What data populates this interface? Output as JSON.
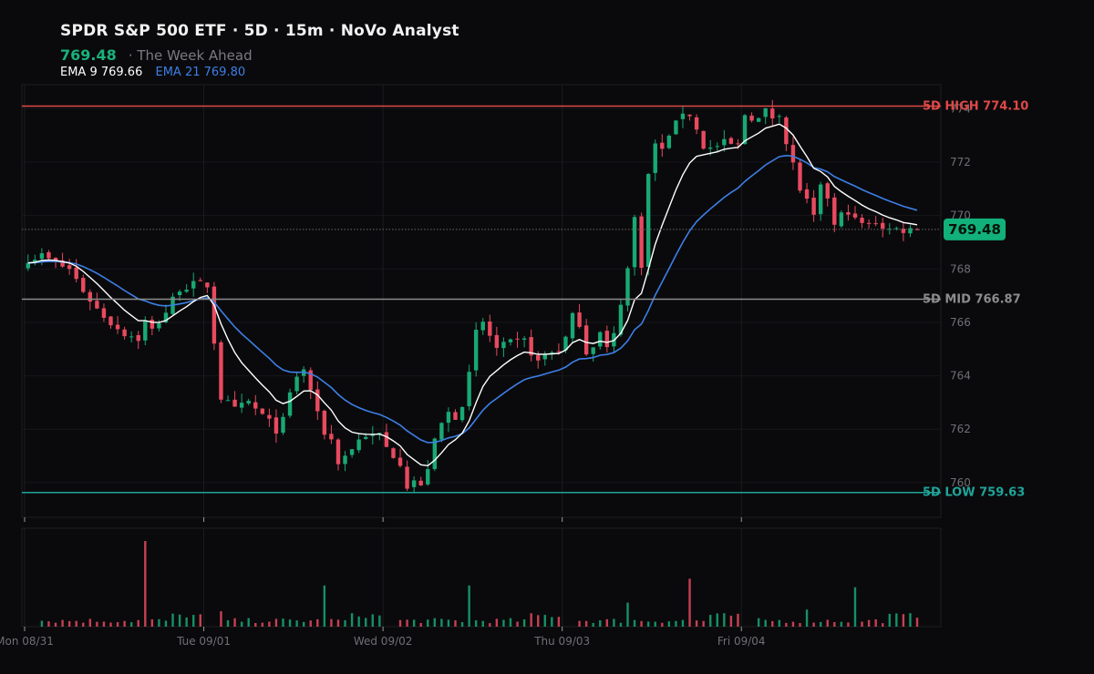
{
  "header": {
    "title": "SPDR S&P 500 ETF · 5D · 15m · NoVo Analyst",
    "last_price": "769.48",
    "subtitle": "· The Week Ahead",
    "ema9_label": "EMA 9 769.66",
    "ema21_label": "EMA 21 769.80"
  },
  "colors": {
    "background": "#0a0a0c",
    "up": "#19a874",
    "down": "#e84a5f",
    "ema9": "#ffffff",
    "ema21": "#3d7fe6",
    "high_line": "#e04848",
    "mid_line": "#8c8c8c",
    "low_line": "#1fa59a",
    "last_tag": "#12b07a"
  },
  "chart_data": {
    "type": "candlestick",
    "interval": "15m",
    "y_ticks": [
      "760",
      "762",
      "764",
      "766",
      "768",
      "770",
      "772",
      "774"
    ],
    "ylim": [
      758.7,
      774.9
    ],
    "x_ticks": [
      {
        "label": "Mon 08/31",
        "index": 0
      },
      {
        "label": "Tue 09/01",
        "index": 26
      },
      {
        "label": "Wed 09/02",
        "index": 52
      },
      {
        "label": "Thu 09/03",
        "index": 78
      },
      {
        "label": "Fri 09/04",
        "index": 104
      }
    ],
    "sessions": 5,
    "bars_per_session": 26,
    "levels": [
      {
        "id": "high",
        "label": "5D HIGH 774.10",
        "value": 774.1
      },
      {
        "id": "mid",
        "label": "5D MID 766.87",
        "value": 766.87
      },
      {
        "id": "low",
        "label": "5D LOW 759.63",
        "value": 759.63
      }
    ],
    "last_price": 769.48,
    "last_price_label": "769.48",
    "close_anchors": [
      [
        0,
        768.4
      ],
      [
        2,
        768.5
      ],
      [
        4,
        768.2
      ],
      [
        6,
        768.0
      ],
      [
        8,
        767.2
      ],
      [
        10,
        766.5
      ],
      [
        12,
        766.0
      ],
      [
        14,
        765.6
      ],
      [
        16,
        765.4
      ],
      [
        17,
        766.0
      ],
      [
        18,
        765.7
      ],
      [
        20,
        766.4
      ],
      [
        22,
        767.3
      ],
      [
        24,
        767.4
      ],
      [
        25,
        767.4
      ],
      [
        26,
        767.4
      ],
      [
        27,
        765.3
      ],
      [
        28,
        763.2
      ],
      [
        30,
        762.7
      ],
      [
        32,
        763.0
      ],
      [
        34,
        762.5
      ],
      [
        36,
        762.0
      ],
      [
        37,
        762.3
      ],
      [
        38,
        763.3
      ],
      [
        39,
        764.0
      ],
      [
        40,
        764.2
      ],
      [
        41,
        763.5
      ],
      [
        42,
        762.5
      ],
      [
        43,
        761.9
      ],
      [
        44,
        761.6
      ],
      [
        45,
        760.8
      ],
      [
        46,
        761.0
      ],
      [
        47,
        761.3
      ],
      [
        48,
        761.6
      ],
      [
        49,
        761.8
      ],
      [
        50,
        761.7
      ],
      [
        51,
        761.8
      ],
      [
        52,
        761.3
      ],
      [
        54,
        760.8
      ],
      [
        55,
        759.9
      ],
      [
        56,
        760.1
      ],
      [
        57,
        759.8
      ],
      [
        58,
        760.6
      ],
      [
        59,
        761.5
      ],
      [
        60,
        762.2
      ],
      [
        61,
        762.6
      ],
      [
        62,
        762.5
      ],
      [
        63,
        763.0
      ],
      [
        64,
        764.0
      ],
      [
        65,
        765.6
      ],
      [
        66,
        766.0
      ],
      [
        67,
        765.5
      ],
      [
        68,
        765.0
      ],
      [
        70,
        765.2
      ],
      [
        72,
        765.3
      ],
      [
        74,
        764.5
      ],
      [
        75,
        764.8
      ],
      [
        77,
        765.0
      ],
      [
        78,
        765.4
      ],
      [
        79,
        766.2
      ],
      [
        80,
        766.0
      ],
      [
        81,
        764.9
      ],
      [
        82,
        765.2
      ],
      [
        83,
        765.6
      ],
      [
        84,
        765.0
      ],
      [
        85,
        765.5
      ],
      [
        86,
        766.8
      ],
      [
        87,
        768.0
      ],
      [
        88,
        769.9
      ],
      [
        89,
        768.2
      ],
      [
        90,
        771.5
      ],
      [
        91,
        772.7
      ],
      [
        92,
        772.4
      ],
      [
        93,
        773.1
      ],
      [
        94,
        773.4
      ],
      [
        95,
        773.9
      ],
      [
        96,
        773.8
      ],
      [
        97,
        773.2
      ],
      [
        98,
        772.6
      ],
      [
        99,
        772.5
      ],
      [
        101,
        772.7
      ],
      [
        103,
        772.6
      ],
      [
        104,
        773.8
      ],
      [
        105,
        773.7
      ],
      [
        106,
        773.6
      ],
      [
        107,
        773.9
      ],
      [
        108,
        773.7
      ],
      [
        109,
        773.9
      ],
      [
        110,
        772.7
      ],
      [
        111,
        771.9
      ],
      [
        112,
        771.0
      ],
      [
        113,
        770.5
      ],
      [
        114,
        769.9
      ],
      [
        115,
        771.0
      ],
      [
        116,
        770.7
      ],
      [
        117,
        769.6
      ],
      [
        118,
        770.0
      ],
      [
        119,
        770.2
      ],
      [
        120,
        769.8
      ],
      [
        121,
        769.7
      ],
      [
        122,
        769.6
      ],
      [
        123,
        769.8
      ],
      [
        124,
        769.6
      ],
      [
        125,
        769.48
      ]
    ],
    "volume_spikes": [
      {
        "index": 17,
        "value": 100,
        "dir": "down"
      },
      {
        "index": 28,
        "value": 18,
        "dir": "down"
      },
      {
        "index": 43,
        "value": 48,
        "dir": "up"
      },
      {
        "index": 64,
        "value": 48,
        "dir": "up"
      },
      {
        "index": 87,
        "value": 28,
        "dir": "up"
      },
      {
        "index": 96,
        "value": 56,
        "dir": "down"
      },
      {
        "index": 113,
        "value": 20,
        "dir": "up"
      },
      {
        "index": 120,
        "value": 46,
        "dir": "up"
      }
    ]
  }
}
